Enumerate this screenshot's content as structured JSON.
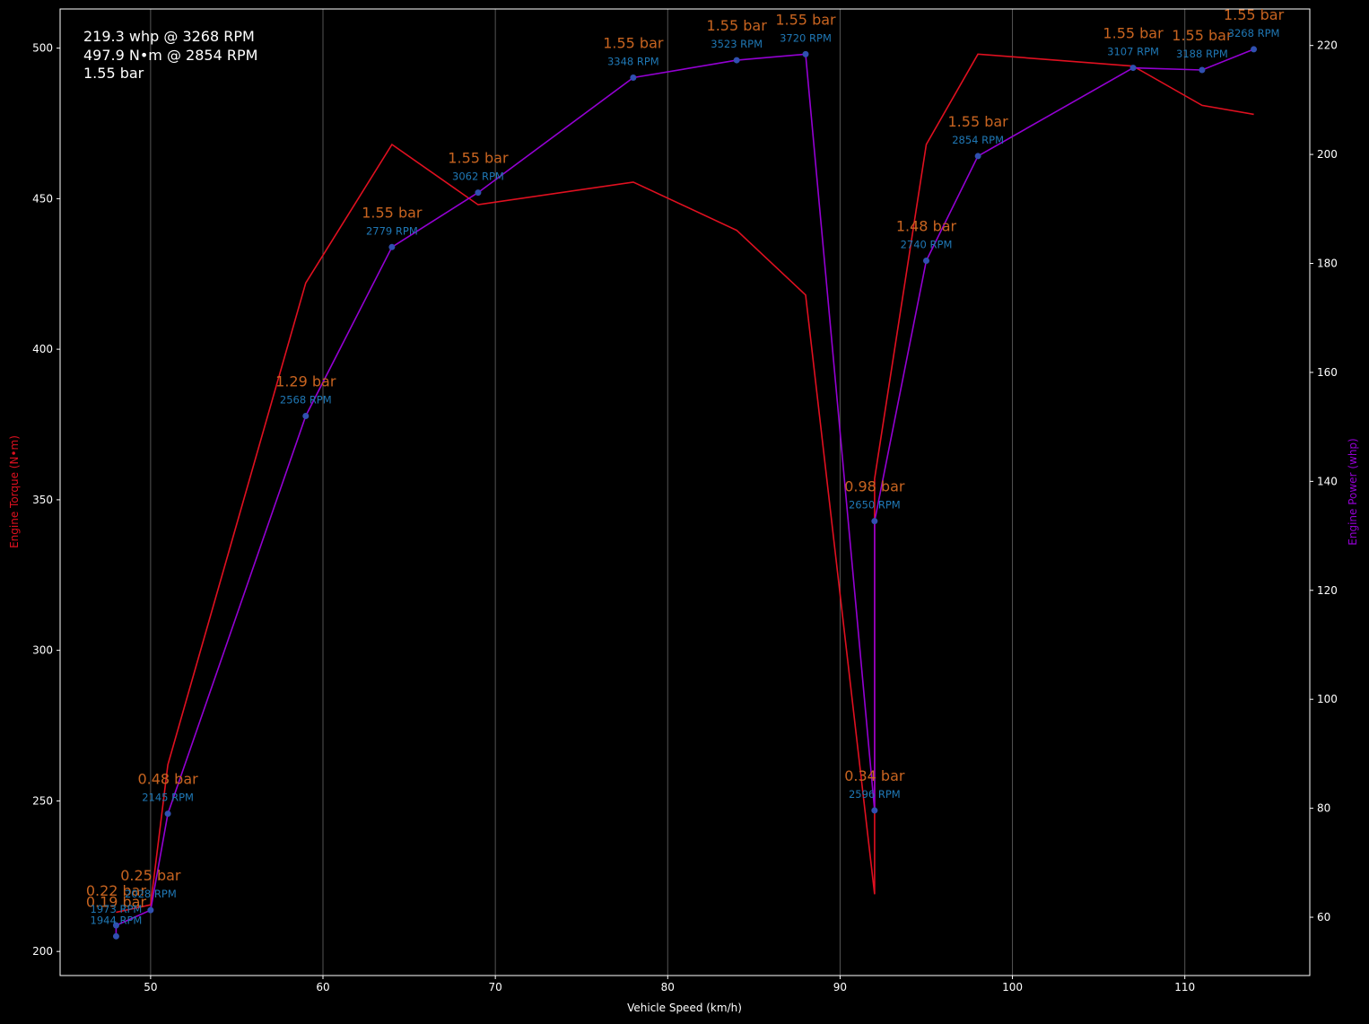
{
  "chart_data": {
    "type": "line",
    "summary_lines": [
      "219.3 whp @ 3268 RPM",
      "497.9 N•m @ 2854 RPM",
      "1.55 bar"
    ],
    "xlabel": "Vehicle Speed (km/h)",
    "ylabel_left": "Engine Torque (N•m)",
    "ylabel_right": "Engine Power (whp)",
    "xlim": [
      44.75,
      117.25
    ],
    "ylim_left": [
      192,
      513
    ],
    "ylim_right": [
      49.3,
      226.7
    ],
    "x_ticks": [
      50,
      60,
      70,
      80,
      90,
      100,
      110
    ],
    "y_ticks_left": [
      200,
      250,
      300,
      350,
      400,
      450,
      500
    ],
    "y_ticks_right": [
      60,
      80,
      100,
      120,
      140,
      160,
      180,
      200,
      220
    ],
    "grid": "vertical",
    "colors": {
      "torque": "#e01020",
      "power": "#9400d3",
      "markers": "#3050b0",
      "rpm_label": "#1f77b4",
      "boost_label": "#c86420",
      "axes": "#ffffff",
      "grid": "#555555"
    },
    "series": [
      {
        "axis": "left",
        "x": [
          48,
          48,
          50,
          51,
          59,
          64,
          69,
          78,
          84,
          88,
          92,
          92,
          95,
          98,
          107,
          111,
          114
        ],
        "values": [
          213,
          213,
          215.5,
          262,
          422,
          468,
          448,
          455.5,
          439.5,
          418,
          219,
          357,
          468,
          498,
          494,
          481,
          478
        ]
      },
      {
        "axis": "right",
        "x": [
          48,
          48,
          50,
          51,
          59,
          64,
          69,
          78,
          84,
          88,
          92,
          92,
          95,
          98,
          107,
          111,
          114
        ],
        "values": [
          56.5,
          58.5,
          61.3,
          79,
          152,
          183,
          193,
          214.1,
          217.3,
          218.4,
          79.6,
          132.7,
          180.5,
          199.7,
          215.9,
          215.5,
          219.3
        ]
      }
    ],
    "point_labels": [
      {
        "x": 48,
        "rpm": "1944 RPM",
        "boost": "0.19 bar"
      },
      {
        "x": 48,
        "rpm": "1973 RPM",
        "boost": "0.22 bar"
      },
      {
        "x": 50,
        "rpm": "2028 RPM",
        "boost": "0.25 bar"
      },
      {
        "x": 51,
        "rpm": "2145 RPM",
        "boost": "0.48 bar"
      },
      {
        "x": 59,
        "rpm": "2568 RPM",
        "boost": "1.29 bar"
      },
      {
        "x": 64,
        "rpm": "2779 RPM",
        "boost": "1.55 bar"
      },
      {
        "x": 69,
        "rpm": "3062 RPM",
        "boost": "1.55 bar"
      },
      {
        "x": 78,
        "rpm": "3348 RPM",
        "boost": "1.55 bar"
      },
      {
        "x": 84,
        "rpm": "3523 RPM",
        "boost": "1.55 bar"
      },
      {
        "x": 88,
        "rpm": "3720 RPM",
        "boost": "1.55 bar"
      },
      {
        "x": 92,
        "rpm": "2596 RPM",
        "boost": "0.34 bar"
      },
      {
        "x": 92,
        "rpm": "2650 RPM",
        "boost": "0.98 bar"
      },
      {
        "x": 95,
        "rpm": "2740 RPM",
        "boost": "1.48 bar"
      },
      {
        "x": 98,
        "rpm": "2854 RPM",
        "boost": "1.55 bar"
      },
      {
        "x": 107,
        "rpm": "3107 RPM",
        "boost": "1.55 bar"
      },
      {
        "x": 111,
        "rpm": "3188 RPM",
        "boost": "1.55 bar"
      },
      {
        "x": 114,
        "rpm": "3268 RPM",
        "boost": "1.55 bar"
      }
    ]
  }
}
